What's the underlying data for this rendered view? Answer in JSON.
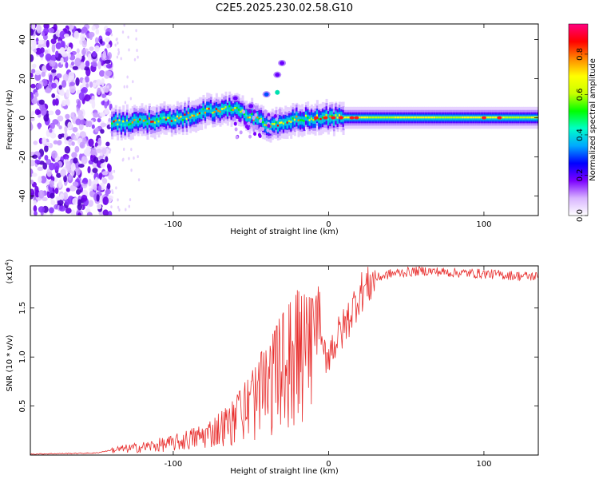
{
  "title": "C2E5.2025.230.02.58.G10",
  "chart_data": [
    {
      "type": "heatmap",
      "xlabel": "Height of straight line (km)",
      "ylabel": "Frequency (Hz)",
      "xlim": [
        -192,
        135
      ],
      "ylim": [
        -50,
        48
      ],
      "xticks": [
        -100,
        0,
        100
      ],
      "yticks": [
        -40,
        -20,
        0,
        20,
        40
      ],
      "colorbar": {
        "label": "Normalized spectral amplitude",
        "range": [
          0,
          0.95
        ],
        "ticks": [
          0.0,
          0.2,
          0.4,
          0.6,
          0.8
        ],
        "colors": [
          "#ffffff",
          "#d8b4ff",
          "#7c00ff",
          "#0000ff",
          "#00a8ff",
          "#00ffc8",
          "#00ff00",
          "#c8ff00",
          "#ffff00",
          "#ff8800",
          "#ff0000",
          "#ff0080"
        ]
      },
      "features": {
        "noise_region_x": [
          -192,
          -140
        ],
        "main_ridge": [
          [
            -140,
            -3
          ],
          [
            -120,
            -2
          ],
          [
            -100,
            -1
          ],
          [
            -80,
            3
          ],
          [
            -60,
            5
          ],
          [
            -45,
            -2
          ],
          [
            -35,
            -4
          ],
          [
            -25,
            -1
          ],
          [
            -10,
            0
          ],
          [
            10,
            0
          ],
          [
            40,
            0
          ],
          [
            80,
            0
          ],
          [
            135,
            0
          ]
        ],
        "secondary_branch": [
          [
            -60,
            10
          ],
          [
            -50,
            6
          ],
          [
            -40,
            12
          ],
          [
            -33,
            22
          ],
          [
            -30,
            28
          ]
        ]
      }
    },
    {
      "type": "line",
      "xlabel": "Height of straight line (km)",
      "ylabel": "SNR (10 * v/v)",
      "scale_label": "(x10",
      "scale_exp": "4",
      "scale_close": ")",
      "xlim": [
        -192,
        135
      ],
      "ylim": [
        0,
        1.93
      ],
      "xticks": [
        -100,
        0,
        100
      ],
      "yticks": [
        0.5,
        1.0,
        1.5
      ],
      "ytick_labels": [
        "0.5",
        "1.0",
        "1.5"
      ],
      "color": "#e8302f",
      "profile": [
        [
          -192,
          0.01
        ],
        [
          -150,
          0.02
        ],
        [
          -140,
          0.05
        ],
        [
          -120,
          0.08
        ],
        [
          -100,
          0.12
        ],
        [
          -80,
          0.2
        ],
        [
          -60,
          0.35
        ],
        [
          -50,
          0.5
        ],
        [
          -40,
          0.65
        ],
        [
          -30,
          0.85
        ],
        [
          -20,
          1.0
        ],
        [
          -10,
          0.95
        ],
        [
          0,
          1.05
        ],
        [
          10,
          1.3
        ],
        [
          20,
          1.65
        ],
        [
          30,
          1.8
        ],
        [
          40,
          1.85
        ],
        [
          60,
          1.88
        ],
        [
          80,
          1.86
        ],
        [
          100,
          1.85
        ],
        [
          120,
          1.83
        ],
        [
          135,
          1.82
        ]
      ]
    }
  ]
}
